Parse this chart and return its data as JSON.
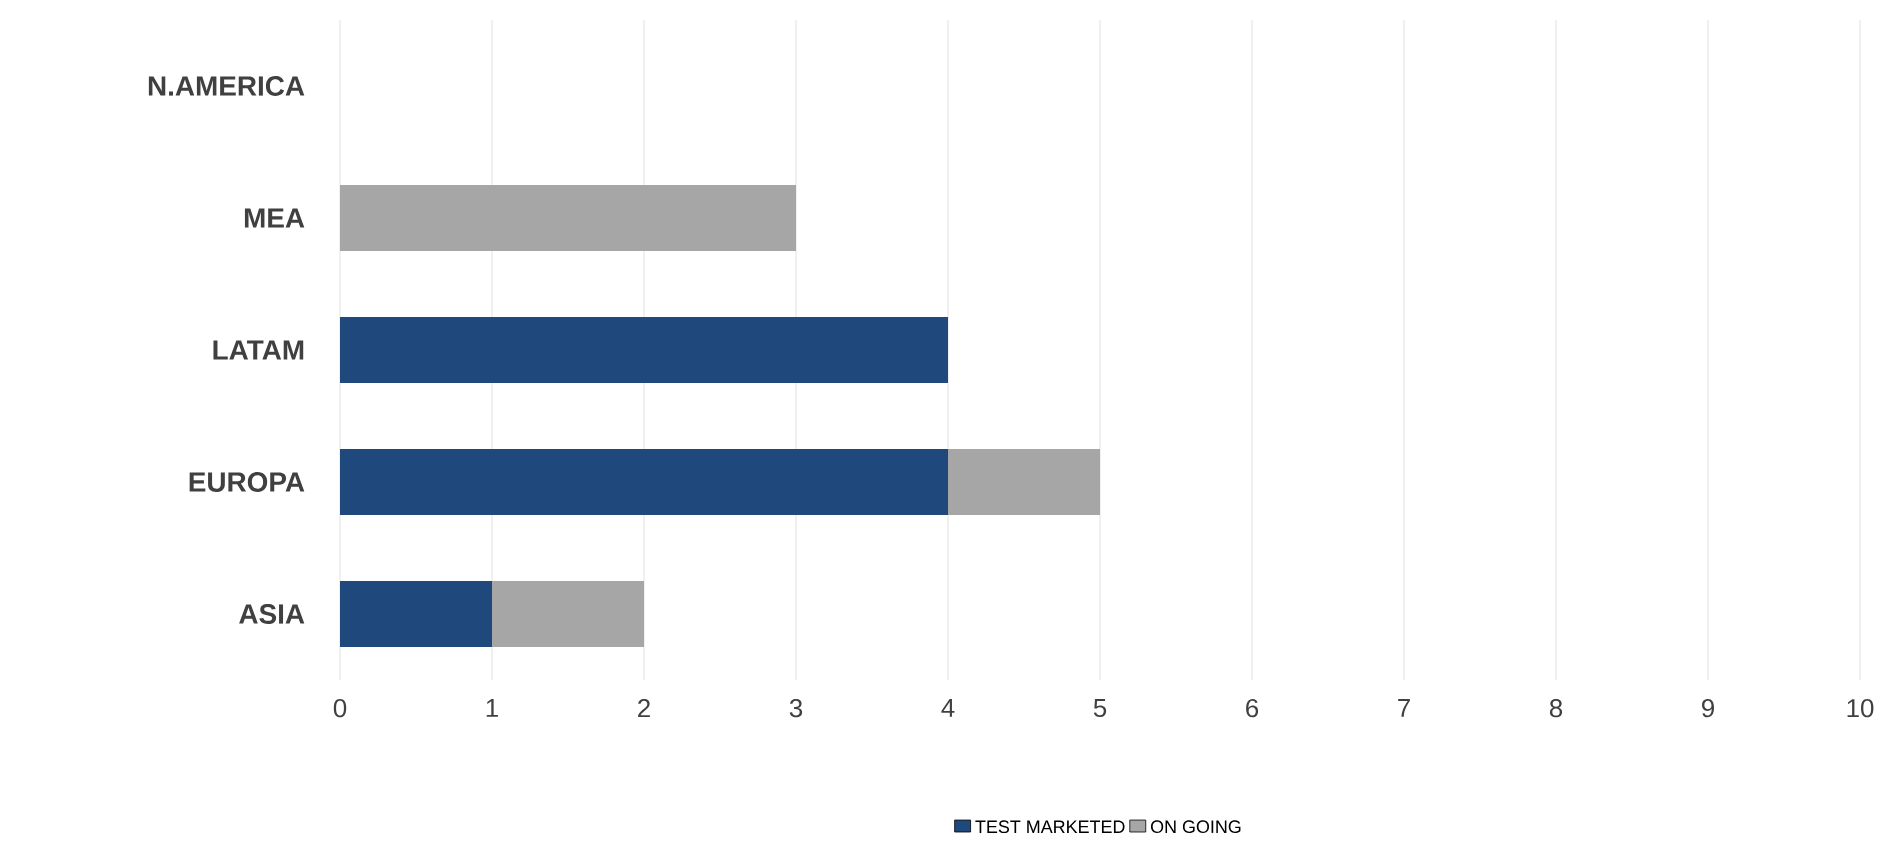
{
  "chart_data": {
    "type": "bar",
    "orientation": "horizontal",
    "stacked": true,
    "categories": [
      "N.AMERICA",
      "MEA",
      "LATAM",
      "EUROPA",
      "ASIA"
    ],
    "series": [
      {
        "name": "TEST MARKETED",
        "color": "#1f497d",
        "values": [
          0,
          0,
          4,
          4,
          1
        ]
      },
      {
        "name": "ON GOING",
        "color": "#a6a6a6",
        "values": [
          0,
          3,
          0,
          1,
          1
        ]
      }
    ],
    "xlim": [
      0,
      10
    ],
    "xticks": [
      0,
      1,
      2,
      3,
      4,
      5,
      6,
      7,
      8,
      9,
      10
    ],
    "grid": "x",
    "legend": "bottom"
  }
}
